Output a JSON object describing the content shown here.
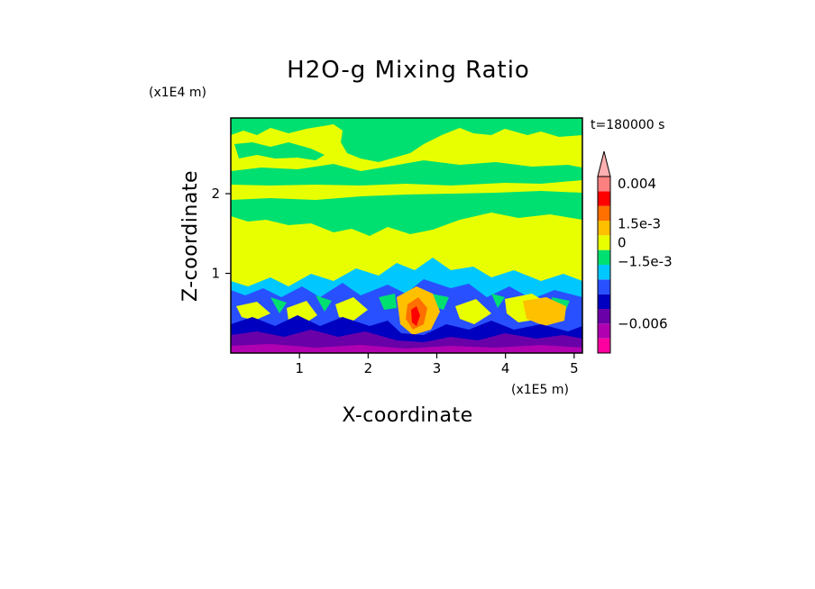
{
  "chart_data": {
    "type": "heatmap",
    "title": "H2O-g Mixing Ratio",
    "xlabel": "X-coordinate",
    "ylabel": "Z-coordinate",
    "x_multiplier": "(x1E5 m)",
    "y_multiplier": "(x1E4 m)",
    "time_label": "t=180000 s",
    "xlim": [
      0,
      5.12
    ],
    "ylim": [
      0,
      2.95
    ],
    "x_ticks": [
      {
        "value": 1,
        "label": "1"
      },
      {
        "value": 2,
        "label": "2"
      },
      {
        "value": 3,
        "label": "3"
      },
      {
        "value": 4,
        "label": "4"
      },
      {
        "value": 5,
        "label": "5"
      }
    ],
    "y_ticks": [
      {
        "value": 1,
        "label": "1"
      },
      {
        "value": 2,
        "label": "2"
      }
    ],
    "colorbar": {
      "colors": [
        "#ff00a0",
        "#b000b0",
        "#6a00a8",
        "#0000c0",
        "#2850ff",
        "#00c8ff",
        "#00e070",
        "#e8ff00",
        "#ffc000",
        "#ff7000",
        "#ff0000",
        "#ff8080",
        "#ffb0b0"
      ],
      "labels": [
        {
          "text": "0.004",
          "level": 11.5
        },
        {
          "text": "1.5e-3",
          "level": 8.8
        },
        {
          "text": "0",
          "level": 7.5
        },
        {
          "text": "−1.5e-3",
          "level": 6.2
        },
        {
          "text": "−0.006",
          "level": 2.0
        }
      ]
    }
  }
}
